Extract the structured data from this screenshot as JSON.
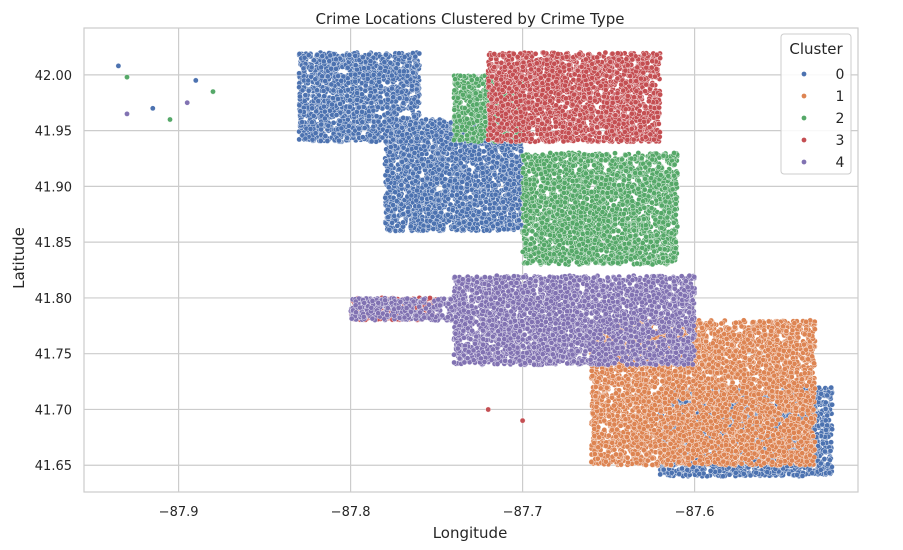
{
  "chart_data": {
    "type": "scatter",
    "title": "Crime Locations Clustered by Crime Type",
    "xlabel": "Longitude",
    "ylabel": "Latitude",
    "xlim": [
      -87.955,
      -87.505
    ],
    "ylim": [
      41.626,
      42.042
    ],
    "xticks": [
      -87.9,
      -87.8,
      -87.7,
      -87.6
    ],
    "xtick_labels": [
      "−87.9",
      "−87.8",
      "−87.7",
      "−87.6"
    ],
    "yticks": [
      41.65,
      41.7,
      41.75,
      41.8,
      41.85,
      41.9,
      41.95,
      42.0
    ],
    "ytick_labels": [
      "41.65",
      "41.70",
      "41.75",
      "41.80",
      "41.85",
      "41.90",
      "41.95",
      "42.00"
    ],
    "grid": true,
    "legend": {
      "title": "Cluster",
      "location": "top-right"
    },
    "series": [
      {
        "name": "0",
        "color": "#4c72b0",
        "regions": [
          {
            "lon": [
              -87.78,
              -87.7
            ],
            "lat": [
              41.86,
              41.96
            ]
          },
          {
            "lon": [
              -87.83,
              -87.76
            ],
            "lat": [
              41.94,
              42.02
            ]
          },
          {
            "lon": [
              -87.62,
              -87.52
            ],
            "lat": [
              41.64,
              41.72
            ]
          }
        ],
        "points": [
          [
            -87.935,
            42.008
          ],
          [
            -87.915,
            41.97
          ],
          [
            -87.89,
            41.995
          ]
        ]
      },
      {
        "name": "1",
        "color": "#dd8452",
        "regions": [
          {
            "lon": [
              -87.66,
              -87.53
            ],
            "lat": [
              41.65,
              41.78
            ]
          }
        ],
        "points": []
      },
      {
        "name": "2",
        "color": "#55a868",
        "regions": [
          {
            "lon": [
              -87.7,
              -87.61
            ],
            "lat": [
              41.83,
              41.93
            ]
          },
          {
            "lon": [
              -87.74,
              -87.7
            ],
            "lat": [
              41.94,
              42.0
            ]
          }
        ],
        "points": [
          [
            -87.93,
            41.998
          ],
          [
            -87.905,
            41.96
          ],
          [
            -87.88,
            41.985
          ]
        ]
      },
      {
        "name": "3",
        "color": "#c44e52",
        "regions": [
          {
            "lon": [
              -87.72,
              -87.62
            ],
            "lat": [
              41.94,
              42.02
            ]
          },
          {
            "lon": [
              -87.8,
              -87.75
            ],
            "lat": [
              41.78,
              41.8
            ]
          }
        ],
        "points": [
          [
            -87.77,
            41.79
          ],
          [
            -87.76,
            41.8
          ],
          [
            -87.7,
            41.69
          ],
          [
            -87.72,
            41.7
          ]
        ]
      },
      {
        "name": "4",
        "color": "#8172b2",
        "regions": [
          {
            "lon": [
              -87.74,
              -87.6
            ],
            "lat": [
              41.74,
              41.82
            ]
          },
          {
            "lon": [
              -87.8,
              -87.74
            ],
            "lat": [
              41.78,
              41.8
            ]
          }
        ],
        "points": [
          [
            -87.93,
            41.965
          ],
          [
            -87.895,
            41.975
          ]
        ]
      }
    ]
  }
}
